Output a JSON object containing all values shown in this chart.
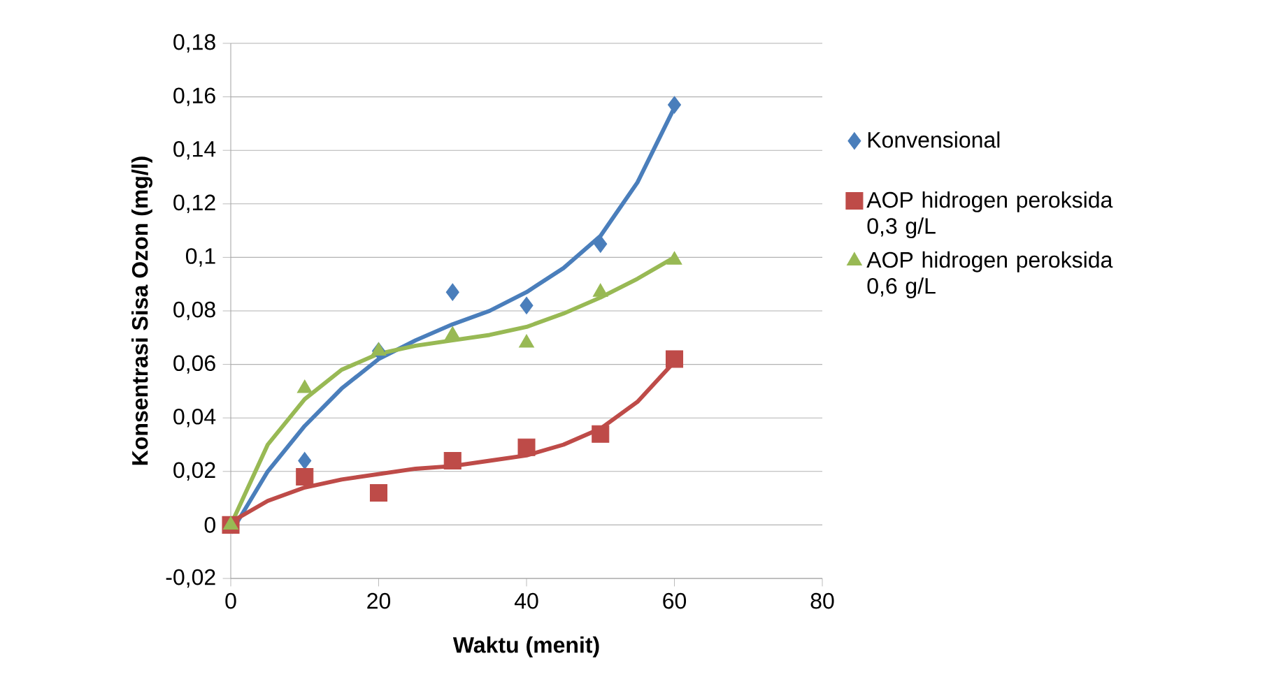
{
  "chart_data": {
    "type": "scatter",
    "xlabel": "Waktu (menit)",
    "ylabel": "Konsentrasi Sisa Ozon (mg/l)",
    "xlim": [
      0,
      80
    ],
    "xticks": [
      0,
      20,
      40,
      60,
      80
    ],
    "ylim": [
      -0.02,
      0.18
    ],
    "yticks": [
      {
        "value": -0.02,
        "label": "-0,02"
      },
      0,
      {
        "value": 0.02,
        "label": "0,02"
      },
      {
        "value": 0.04,
        "label": "0,04"
      },
      {
        "value": 0.06,
        "label": "0,06"
      },
      {
        "value": 0.08,
        "label": "0,08"
      },
      {
        "value": 0.1,
        "label": "0,1"
      },
      {
        "value": 0.12,
        "label": "0,12"
      },
      {
        "value": 0.14,
        "label": "0,14"
      },
      {
        "value": 0.16,
        "label": "0,16"
      },
      {
        "value": 0.18,
        "label": "0,18"
      }
    ],
    "grid": "y",
    "legend": "right",
    "series": [
      {
        "name": "Konvensional",
        "color": "#4a7ebb",
        "marker": "diamond",
        "x": [
          10,
          20,
          30,
          40,
          50,
          60
        ],
        "values": [
          0.024,
          0.065,
          0.087,
          0.082,
          0.105,
          0.157
        ]
      },
      {
        "name": "AOP hidrogen peroksida 0,3 g/L",
        "color": "#be4b48",
        "marker": "square",
        "x": [
          0,
          10,
          20,
          30,
          40,
          50,
          60
        ],
        "values": [
          0,
          0.018,
          0.012,
          0.024,
          0.029,
          0.034,
          0.062
        ]
      },
      {
        "name": "AOP hidrogen peroksida 0,6 g/L",
        "color": "#98b954",
        "marker": "triangle",
        "x": [
          0,
          10,
          20,
          30,
          40,
          50,
          60
        ],
        "values": [
          0,
          0.051,
          0.065,
          0.071,
          0.068,
          0.087,
          0.099
        ]
      },
      {
        "type": "line",
        "color": "#4a7ebb",
        "marker": "none",
        "x": [
          0,
          5,
          10,
          15,
          20,
          25,
          30,
          35,
          40,
          45,
          50,
          55,
          60
        ],
        "values": [
          -0.003,
          0.02,
          0.037,
          0.051,
          0.062,
          0.069,
          0.075,
          0.08,
          0.087,
          0.096,
          0.108,
          0.128,
          0.156
        ]
      },
      {
        "type": "line",
        "color": "#be4b48",
        "marker": "none",
        "x": [
          0,
          5,
          10,
          15,
          20,
          25,
          30,
          35,
          40,
          45,
          50,
          55,
          60
        ],
        "values": [
          0.001,
          0.009,
          0.014,
          0.017,
          0.019,
          0.021,
          0.022,
          0.024,
          0.026,
          0.03,
          0.036,
          0.046,
          0.061
        ]
      },
      {
        "type": "line",
        "color": "#98b954",
        "marker": "none",
        "x": [
          0,
          5,
          10,
          15,
          20,
          25,
          30,
          35,
          40,
          45,
          50,
          55,
          60
        ],
        "values": [
          0,
          0.03,
          0.047,
          0.058,
          0.064,
          0.067,
          0.069,
          0.071,
          0.074,
          0.079,
          0.085,
          0.092,
          0.1
        ]
      }
    ]
  }
}
